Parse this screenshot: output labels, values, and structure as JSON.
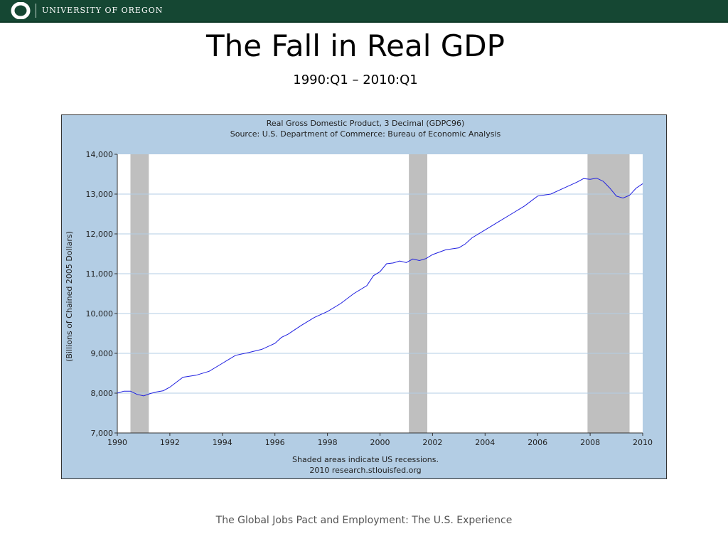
{
  "header": {
    "university_name": "UNIVERSITY OF OREGON",
    "logo_letter": "O"
  },
  "slide": {
    "title": "The Fall in Real GDP",
    "subtitle": "1990:Q1 – 2010:Q1",
    "footer": "The Global Jobs Pact and Employment: The U.S. Experience"
  },
  "chart_data": {
    "type": "line",
    "title": "Real Gross Domestic Product, 3 Decimal (GDPC96)",
    "subtitle": "Source: U.S. Department of Commerce: Bureau of Economic Analysis",
    "ylabel": "(Billions of Chained 2005 Dollars)",
    "xlabel": "",
    "note_lines": [
      "Shaded areas indicate US recessions.",
      "2010 research.stlouisfed.org"
    ],
    "xlim": [
      1990,
      2010
    ],
    "ylim": [
      7000,
      14000
    ],
    "x_ticks": [
      1990,
      1992,
      1994,
      1996,
      1998,
      2000,
      2002,
      2004,
      2006,
      2008,
      2010
    ],
    "x_tick_labels": [
      "1990",
      "1992",
      "1994",
      "1996",
      "1998",
      "2000",
      "2002",
      "2004",
      "2006",
      "2008",
      "2010"
    ],
    "y_ticks": [
      7000,
      8000,
      9000,
      10000,
      11000,
      12000,
      13000,
      14000
    ],
    "y_tick_labels": [
      "7,000",
      "8,000",
      "9,000",
      "10,000",
      "11,000",
      "12,000",
      "13,000",
      "14,000"
    ],
    "grid": "horizontal",
    "recessions": [
      [
        1990.5,
        1991.2
      ],
      [
        2001.1,
        2001.8
      ],
      [
        2007.9,
        2009.5
      ]
    ],
    "series": [
      {
        "color": "#1f1fe0",
        "x": [
          1990.0,
          1990.25,
          1990.5,
          1990.75,
          1991.0,
          1991.25,
          1991.5,
          1991.75,
          1992.0,
          1992.5,
          1993.0,
          1993.5,
          1994.0,
          1994.5,
          1995.0,
          1995.5,
          1996.0,
          1996.25,
          1996.5,
          1997.0,
          1997.5,
          1998.0,
          1998.5,
          1999.0,
          1999.5,
          1999.75,
          2000.0,
          2000.25,
          2000.5,
          2000.75,
          2001.0,
          2001.25,
          2001.5,
          2001.75,
          2002.0,
          2002.5,
          2003.0,
          2003.25,
          2003.5,
          2004.0,
          2004.5,
          2005.0,
          2005.5,
          2006.0,
          2006.5,
          2007.0,
          2007.5,
          2007.75,
          2008.0,
          2008.25,
          2008.5,
          2008.75,
          2009.0,
          2009.25,
          2009.5,
          2009.75,
          2010.0
        ],
        "y": [
          8000,
          8050,
          8050,
          7970,
          7930,
          7990,
          8030,
          8060,
          8150,
          8400,
          8450,
          8550,
          8750,
          8950,
          9020,
          9100,
          9250,
          9400,
          9480,
          9700,
          9900,
          10050,
          10250,
          10500,
          10700,
          10950,
          11050,
          11250,
          11270,
          11320,
          11280,
          11370,
          11330,
          11380,
          11480,
          11600,
          11650,
          11750,
          11900,
          12100,
          12300,
          12500,
          12700,
          12950,
          13000,
          13150,
          13300,
          13390,
          13370,
          13400,
          13320,
          13150,
          12950,
          12900,
          12970,
          13150,
          13260
        ]
      }
    ]
  }
}
